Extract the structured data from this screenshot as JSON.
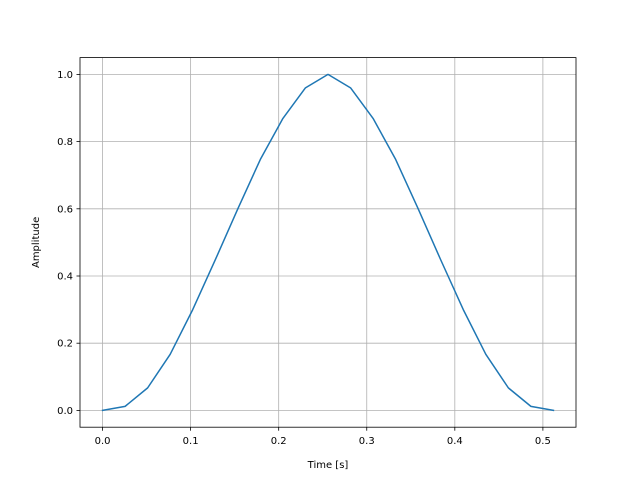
{
  "chart_data": {
    "type": "line",
    "title": "",
    "xlabel": "Time [s]",
    "ylabel": "Amplitude",
    "xlim": [
      -0.0256,
      0.5376
    ],
    "ylim": [
      -0.05,
      1.05
    ],
    "xticks": [
      0.0,
      0.1,
      0.2,
      0.3,
      0.4,
      0.5
    ],
    "xtick_labels": [
      "0.0",
      "0.1",
      "0.2",
      "0.3",
      "0.4",
      "0.5"
    ],
    "yticks": [
      0.0,
      0.2,
      0.4,
      0.6,
      0.8,
      1.0
    ],
    "ytick_labels": [
      "0.0",
      "0.2",
      "0.4",
      "0.6",
      "0.8",
      "1.0"
    ],
    "grid": true,
    "legend": "none",
    "series": [
      {
        "color": "#1f77b4",
        "x": [
          0.0,
          0.0256,
          0.0512,
          0.0768,
          0.1024,
          0.128,
          0.1536,
          0.1792,
          0.2048,
          0.2304,
          0.256,
          0.2816,
          0.3072,
          0.3328,
          0.3584,
          0.384,
          0.4096,
          0.4352,
          0.4608,
          0.4864,
          0.512
        ],
        "y": [
          0.0,
          0.012,
          0.067,
          0.167,
          0.3,
          0.448,
          0.6,
          0.747,
          0.869,
          0.96,
          1.0,
          0.96,
          0.869,
          0.747,
          0.6,
          0.448,
          0.3,
          0.167,
          0.067,
          0.012,
          0.0
        ]
      }
    ]
  }
}
